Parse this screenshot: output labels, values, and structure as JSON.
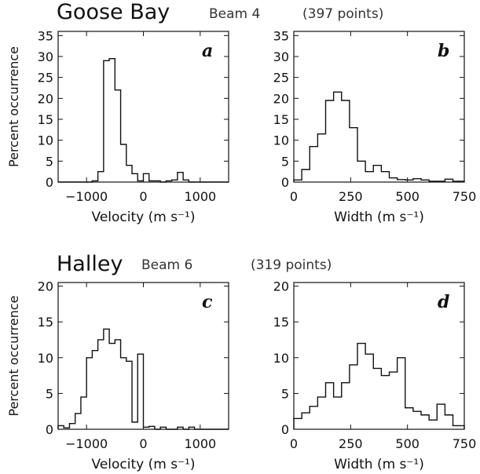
{
  "titles": {
    "row1": {
      "station": "Goose Bay",
      "beam": "Beam 4",
      "points": "(397 points)"
    },
    "row2": {
      "station": "Halley",
      "beam": "Beam 6",
      "points": "(319 points)"
    }
  },
  "chart_data": [
    {
      "type": "histogram",
      "panel_label": "a",
      "xlabel": "Velocity (m s⁻¹)",
      "ylabel": "Percent occurrence",
      "xlim": [
        -1500,
        1500
      ],
      "ylim": [
        0,
        36
      ],
      "xticks": [
        -1000,
        0,
        1000
      ],
      "xtick_labels": [
        "−1000",
        "0",
        "1000"
      ],
      "yticks": [
        0,
        5,
        10,
        15,
        20,
        25,
        30,
        35
      ],
      "ytick_labels": [
        "0",
        "5",
        "10",
        "15",
        "20",
        "25",
        "30",
        "35"
      ],
      "bin_edges": [
        -1500,
        -1400,
        -1300,
        -1200,
        -1100,
        -1000,
        -900,
        -800,
        -700,
        -600,
        -500,
        -400,
        -300,
        -200,
        -100,
        0,
        100,
        200,
        300,
        400,
        500,
        600,
        700,
        800,
        900,
        1000,
        1100,
        1200,
        1300,
        1400,
        1500
      ],
      "values": [
        0,
        0,
        0,
        0,
        0,
        0,
        0.3,
        2.5,
        29,
        29.5,
        22,
        9,
        4,
        2,
        0.3,
        2,
        0.3,
        0.3,
        0,
        0.3,
        0.5,
        2.3,
        0.5,
        0,
        0,
        0,
        0,
        0,
        0,
        0
      ]
    },
    {
      "type": "histogram",
      "panel_label": "b",
      "xlabel": "Width (m s⁻¹)",
      "ylabel": "",
      "xlim": [
        0,
        750
      ],
      "ylim": [
        0,
        36
      ],
      "xticks": [
        0,
        250,
        500,
        750
      ],
      "xtick_labels": [
        "0",
        "250",
        "500",
        "750"
      ],
      "yticks": [
        0,
        5,
        10,
        15,
        20,
        25,
        30,
        35
      ],
      "ytick_labels": [
        "0",
        "5",
        "10",
        "15",
        "20",
        "25",
        "30",
        "35"
      ],
      "bin_edges": [
        0,
        35,
        70,
        105,
        140,
        175,
        210,
        245,
        280,
        315,
        350,
        385,
        420,
        455,
        490,
        525,
        560,
        595,
        630,
        665,
        700,
        750
      ],
      "values": [
        0.5,
        3,
        8.5,
        11.5,
        19.5,
        21.5,
        19.5,
        13,
        5,
        2.5,
        4,
        2.5,
        1,
        0.6,
        0.5,
        0.8,
        0.5,
        0.2,
        0.2,
        0.7,
        0.2
      ]
    },
    {
      "type": "histogram",
      "panel_label": "c",
      "xlabel": "Velocity (m s⁻¹)",
      "ylabel": "Percent occurrence",
      "xlim": [
        -1500,
        1500
      ],
      "ylim": [
        0,
        20.5
      ],
      "xticks": [
        -1000,
        0,
        1000
      ],
      "xtick_labels": [
        "−1000",
        "0",
        "1000"
      ],
      "yticks": [
        0,
        5,
        10,
        15,
        20
      ],
      "ytick_labels": [
        "0",
        "5",
        "10",
        "15",
        "20"
      ],
      "bin_edges": [
        -1500,
        -1400,
        -1300,
        -1200,
        -1100,
        -1000,
        -900,
        -800,
        -700,
        -600,
        -500,
        -400,
        -300,
        -200,
        -100,
        0,
        100,
        200,
        300,
        400,
        500,
        600,
        700,
        800,
        900,
        1000,
        1100,
        1200,
        1300,
        1400,
        1500
      ],
      "values": [
        0.5,
        0.2,
        0.8,
        2.2,
        4.5,
        10,
        11,
        12.5,
        14,
        12,
        12.5,
        10,
        9.5,
        1,
        10.5,
        0.3,
        0.4,
        0,
        0.3,
        0,
        0,
        0.3,
        0,
        0.3,
        0,
        0,
        0,
        0,
        0,
        0
      ]
    },
    {
      "type": "histogram",
      "panel_label": "d",
      "xlabel": "Width (m s⁻¹)",
      "ylabel": "",
      "xlim": [
        0,
        750
      ],
      "ylim": [
        0,
        20.5
      ],
      "xticks": [
        0,
        250,
        500,
        750
      ],
      "xtick_labels": [
        "0",
        "250",
        "500",
        "750"
      ],
      "yticks": [
        0,
        5,
        10,
        15,
        20
      ],
      "ytick_labels": [
        "0",
        "5",
        "10",
        "15",
        "20"
      ],
      "bin_edges": [
        0,
        35,
        70,
        105,
        140,
        175,
        210,
        245,
        280,
        315,
        350,
        385,
        420,
        455,
        490,
        525,
        560,
        595,
        630,
        665,
        700,
        750
      ],
      "values": [
        1.5,
        2.3,
        3.2,
        4.5,
        6.5,
        4.5,
        6.5,
        9,
        12,
        10.5,
        8.5,
        7.5,
        8,
        10,
        3,
        2.5,
        2,
        1.3,
        3.5,
        2,
        0.5
      ]
    }
  ]
}
